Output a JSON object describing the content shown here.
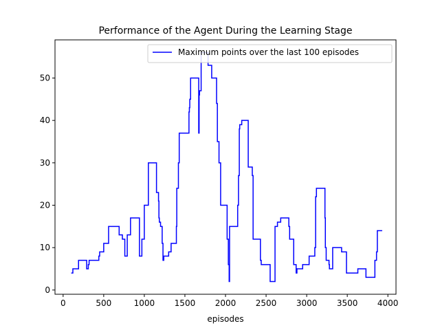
{
  "chart_data": {
    "type": "line",
    "title": "Performance of the Agent During the Learning Stage",
    "xlabel": "episodes",
    "ylabel": "",
    "xlim": [
      -100,
      4100
    ],
    "ylim": [
      -1,
      59
    ],
    "xticks": [
      0,
      500,
      1000,
      1500,
      2000,
      2500,
      3000,
      3500,
      4000
    ],
    "yticks": [
      0,
      10,
      20,
      30,
      40,
      50
    ],
    "grid": false,
    "legend_position": "upper right",
    "series": [
      {
        "name": "Maximum points over the last 100 episodes",
        "color": "#0000ff",
        "step": true,
        "points": [
          [
            100,
            4
          ],
          [
            120,
            5
          ],
          [
            180,
            5
          ],
          [
            190,
            7
          ],
          [
            280,
            7
          ],
          [
            290,
            5
          ],
          [
            300,
            5
          ],
          [
            310,
            6
          ],
          [
            320,
            7
          ],
          [
            430,
            7
          ],
          [
            440,
            8
          ],
          [
            450,
            9
          ],
          [
            490,
            9
          ],
          [
            500,
            11
          ],
          [
            550,
            11
          ],
          [
            560,
            15
          ],
          [
            680,
            15
          ],
          [
            690,
            13
          ],
          [
            720,
            13
          ],
          [
            730,
            12
          ],
          [
            750,
            12
          ],
          [
            760,
            8
          ],
          [
            780,
            8
          ],
          [
            790,
            13
          ],
          [
            820,
            13
          ],
          [
            830,
            17
          ],
          [
            930,
            17
          ],
          [
            940,
            8
          ],
          [
            960,
            8
          ],
          [
            970,
            12
          ],
          [
            990,
            12
          ],
          [
            1000,
            20
          ],
          [
            1040,
            20
          ],
          [
            1050,
            30
          ],
          [
            1140,
            30
          ],
          [
            1150,
            23
          ],
          [
            1170,
            23
          ],
          [
            1175,
            21
          ],
          [
            1180,
            17
          ],
          [
            1185,
            16
          ],
          [
            1195,
            16
          ],
          [
            1200,
            15
          ],
          [
            1215,
            15
          ],
          [
            1220,
            11
          ],
          [
            1230,
            7
          ],
          [
            1240,
            8
          ],
          [
            1290,
            8
          ],
          [
            1300,
            9
          ],
          [
            1320,
            9
          ],
          [
            1330,
            11
          ],
          [
            1390,
            11
          ],
          [
            1395,
            15
          ],
          [
            1400,
            24
          ],
          [
            1410,
            24
          ],
          [
            1420,
            30
          ],
          [
            1430,
            37
          ],
          [
            1540,
            37
          ],
          [
            1550,
            42
          ],
          [
            1555,
            43
          ],
          [
            1560,
            45
          ],
          [
            1570,
            50
          ],
          [
            1660,
            50
          ],
          [
            1670,
            37
          ],
          [
            1675,
            46
          ],
          [
            1680,
            47
          ],
          [
            1690,
            47
          ],
          [
            1700,
            56
          ],
          [
            1780,
            56
          ],
          [
            1785,
            53
          ],
          [
            1820,
            53
          ],
          [
            1830,
            50
          ],
          [
            1880,
            50
          ],
          [
            1890,
            44
          ],
          [
            1900,
            35
          ],
          [
            1915,
            35
          ],
          [
            1920,
            30
          ],
          [
            1935,
            30
          ],
          [
            1940,
            20
          ],
          [
            2010,
            20
          ],
          [
            2020,
            12
          ],
          [
            2030,
            12
          ],
          [
            2035,
            6
          ],
          [
            2045,
            2
          ],
          [
            2050,
            15
          ],
          [
            2140,
            15
          ],
          [
            2150,
            20
          ],
          [
            2160,
            27
          ],
          [
            2170,
            38
          ],
          [
            2175,
            39
          ],
          [
            2190,
            39
          ],
          [
            2200,
            40
          ],
          [
            2270,
            40
          ],
          [
            2280,
            29
          ],
          [
            2320,
            29
          ],
          [
            2330,
            27
          ],
          [
            2340,
            12
          ],
          [
            2420,
            12
          ],
          [
            2430,
            7
          ],
          [
            2440,
            6
          ],
          [
            2540,
            6
          ],
          [
            2550,
            2
          ],
          [
            2600,
            2
          ],
          [
            2610,
            15
          ],
          [
            2630,
            15
          ],
          [
            2640,
            16
          ],
          [
            2670,
            16
          ],
          [
            2680,
            17
          ],
          [
            2770,
            17
          ],
          [
            2780,
            15
          ],
          [
            2790,
            12
          ],
          [
            2830,
            12
          ],
          [
            2840,
            6
          ],
          [
            2860,
            6
          ],
          [
            2870,
            4
          ],
          [
            2880,
            5
          ],
          [
            2940,
            5
          ],
          [
            2950,
            6
          ],
          [
            3020,
            6
          ],
          [
            3030,
            8
          ],
          [
            3090,
            8
          ],
          [
            3100,
            10
          ],
          [
            3110,
            22
          ],
          [
            3120,
            24
          ],
          [
            3220,
            24
          ],
          [
            3225,
            17
          ],
          [
            3230,
            10
          ],
          [
            3240,
            7
          ],
          [
            3270,
            7
          ],
          [
            3275,
            6
          ],
          [
            3280,
            5
          ],
          [
            3310,
            5
          ],
          [
            3320,
            10
          ],
          [
            3420,
            10
          ],
          [
            3430,
            9
          ],
          [
            3480,
            9
          ],
          [
            3490,
            4
          ],
          [
            3620,
            4
          ],
          [
            3630,
            5
          ],
          [
            3720,
            5
          ],
          [
            3730,
            3
          ],
          [
            3830,
            3
          ],
          [
            3840,
            7
          ],
          [
            3850,
            7
          ],
          [
            3860,
            9
          ],
          [
            3870,
            14
          ],
          [
            3930,
            14
          ]
        ]
      }
    ]
  }
}
